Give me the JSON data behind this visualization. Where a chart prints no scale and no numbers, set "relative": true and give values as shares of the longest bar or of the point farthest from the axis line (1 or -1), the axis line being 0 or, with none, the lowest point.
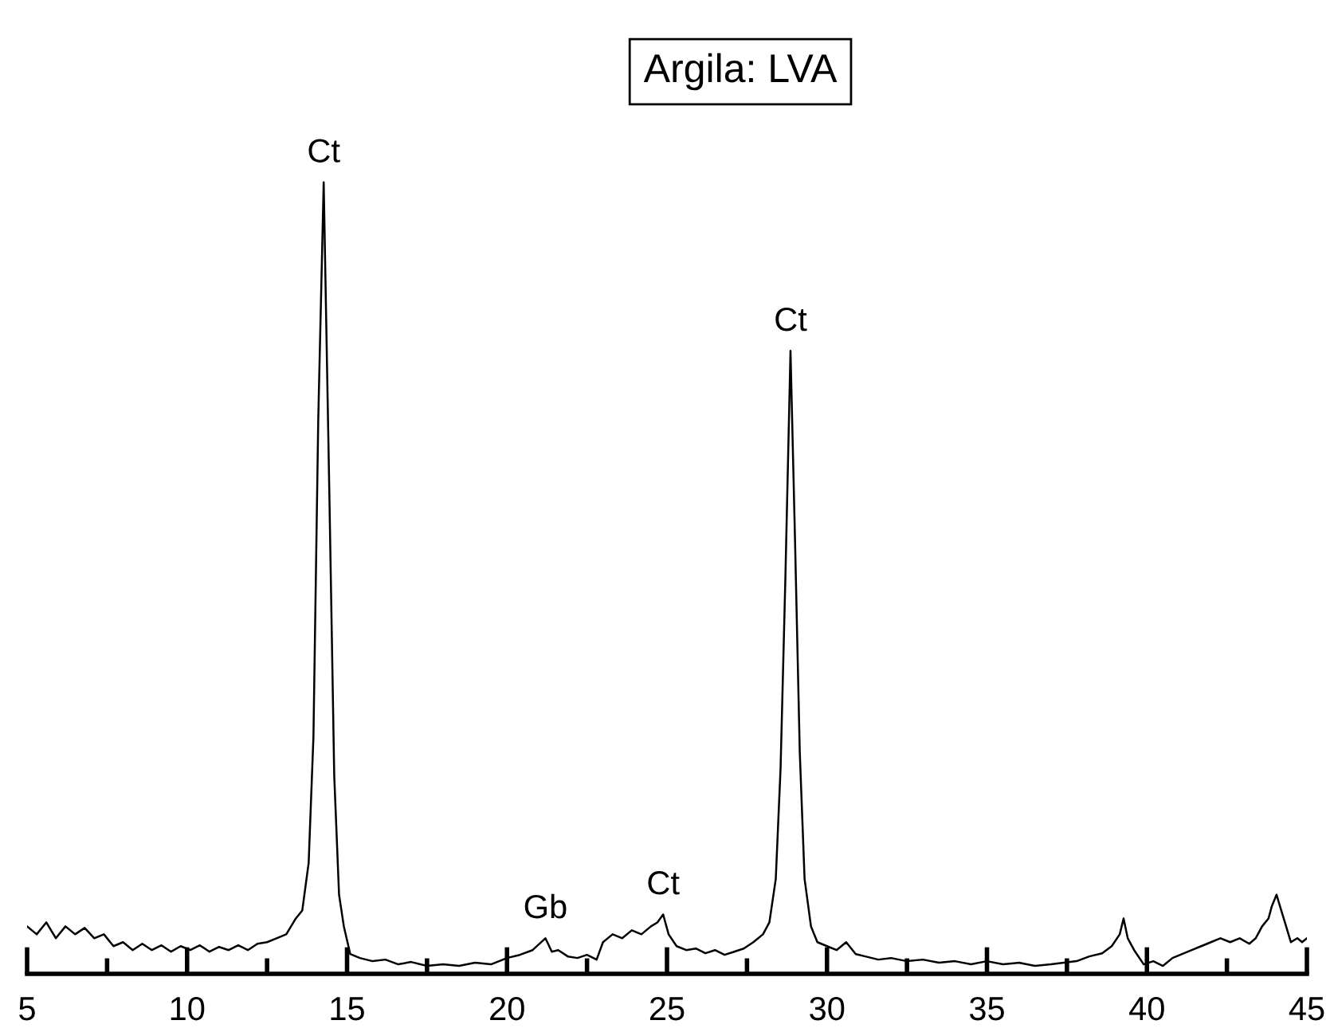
{
  "chart_data": {
    "type": "line",
    "title": "Argila: LVA",
    "relative": true,
    "series": [
      {
        "color": "#000000",
        "x": [
          5,
          5.3,
          5.6,
          5.9,
          6.2,
          6.5,
          6.8,
          7.1,
          7.4,
          7.7,
          8.0,
          8.3,
          8.6,
          8.9,
          9.2,
          9.5,
          9.8,
          10.1,
          10.4,
          10.7,
          11.0,
          11.3,
          11.6,
          11.9,
          12.2,
          12.5,
          12.8,
          13.1,
          13.4,
          13.6,
          13.8,
          13.95,
          14.1,
          14.27,
          14.45,
          14.6,
          14.75,
          14.9,
          15.1,
          15.4,
          15.8,
          16.2,
          16.6,
          17.0,
          17.5,
          18.0,
          18.5,
          19.0,
          19.5,
          20.0,
          20.4,
          20.8,
          21.2,
          21.4,
          21.6,
          21.9,
          22.2,
          22.5,
          22.8,
          23.0,
          23.3,
          23.6,
          23.9,
          24.2,
          24.5,
          24.7,
          24.88,
          25.05,
          25.3,
          25.6,
          25.9,
          26.2,
          26.5,
          26.8,
          27.1,
          27.4,
          27.7,
          28.0,
          28.2,
          28.4,
          28.55,
          28.7,
          28.86,
          29.0,
          29.15,
          29.3,
          29.5,
          29.7,
          30.0,
          30.3,
          30.6,
          30.9,
          31.2,
          31.6,
          32.0,
          32.5,
          33.0,
          33.5,
          34.0,
          34.5,
          35.0,
          35.5,
          36.0,
          36.5,
          37.0,
          37.4,
          37.8,
          38.2,
          38.6,
          38.9,
          39.15,
          39.27,
          39.4,
          39.6,
          39.9,
          40.2,
          40.5,
          40.8,
          41.1,
          41.4,
          41.7,
          42.0,
          42.3,
          42.6,
          42.9,
          43.2,
          43.4,
          43.6,
          43.8,
          43.9,
          44.05,
          44.2,
          44.35,
          44.5,
          44.7,
          44.85,
          45
        ],
        "values": [
          0.06,
          0.05,
          0.065,
          0.045,
          0.06,
          0.05,
          0.058,
          0.045,
          0.05,
          0.035,
          0.04,
          0.03,
          0.038,
          0.03,
          0.036,
          0.028,
          0.035,
          0.03,
          0.036,
          0.028,
          0.034,
          0.03,
          0.036,
          0.03,
          0.038,
          0.04,
          0.045,
          0.05,
          0.07,
          0.08,
          0.14,
          0.3,
          0.7,
          1.0,
          0.6,
          0.25,
          0.1,
          0.06,
          0.025,
          0.02,
          0.016,
          0.018,
          0.012,
          0.015,
          0.01,
          0.012,
          0.01,
          0.014,
          0.012,
          0.02,
          0.024,
          0.03,
          0.045,
          0.028,
          0.03,
          0.022,
          0.02,
          0.024,
          0.018,
          0.04,
          0.05,
          0.045,
          0.055,
          0.05,
          0.06,
          0.065,
          0.075,
          0.05,
          0.035,
          0.03,
          0.032,
          0.026,
          0.03,
          0.024,
          0.028,
          0.032,
          0.04,
          0.05,
          0.065,
          0.12,
          0.26,
          0.5,
          0.787,
          0.55,
          0.28,
          0.12,
          0.06,
          0.04,
          0.035,
          0.03,
          0.04,
          0.025,
          0.022,
          0.018,
          0.02,
          0.016,
          0.018,
          0.014,
          0.016,
          0.012,
          0.016,
          0.012,
          0.014,
          0.01,
          0.012,
          0.014,
          0.016,
          0.022,
          0.026,
          0.035,
          0.05,
          0.07,
          0.045,
          0.03,
          0.012,
          0.016,
          0.01,
          0.02,
          0.025,
          0.03,
          0.035,
          0.04,
          0.045,
          0.04,
          0.045,
          0.038,
          0.045,
          0.06,
          0.07,
          0.085,
          0.1,
          0.08,
          0.06,
          0.04,
          0.045,
          0.04,
          0.045
        ]
      }
    ],
    "annotations": [
      {
        "text": "Ct",
        "x": 14.27,
        "y": 1.0
      },
      {
        "text": "Gb",
        "x": 21.2,
        "y": 0.045
      },
      {
        "text": "Ct",
        "x": 24.88,
        "y": 0.075
      },
      {
        "text": "Ct",
        "x": 28.86,
        "y": 0.787
      }
    ],
    "xlim": [
      5,
      45
    ],
    "xticks": [
      5,
      {
        "value": 7.5,
        "label": null
      },
      10,
      {
        "value": 12.5,
        "label": null
      },
      15,
      {
        "value": 17.5,
        "label": null
      },
      20,
      {
        "value": 22.5,
        "label": null
      },
      25,
      {
        "value": 27.5,
        "label": null
      },
      30,
      {
        "value": 32.5,
        "label": null
      },
      35,
      {
        "value": 37.5,
        "label": null
      },
      40,
      {
        "value": 42.5,
        "label": null
      },
      45
    ],
    "tick_labels": "x",
    "grid": false,
    "legend": false
  }
}
